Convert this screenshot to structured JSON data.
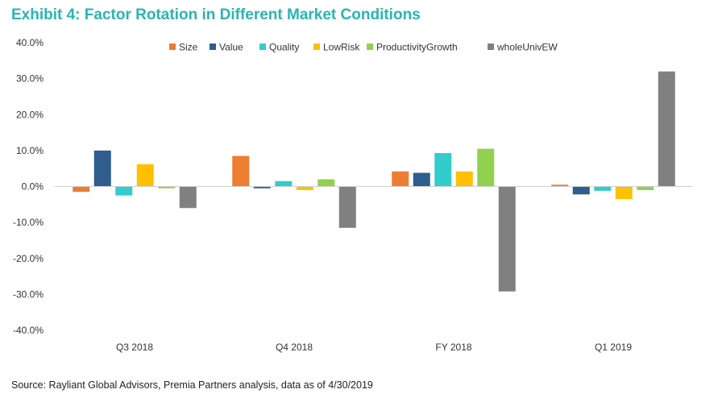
{
  "title": "Exhibit 4: Factor Rotation in Different Market Conditions",
  "source": "Source: Rayliant Global Advisors, Premia Partners analysis, data as of 4/30/2019",
  "chart_data": {
    "type": "bar",
    "categories": [
      "Q3 2018",
      "Q4 2018",
      "FY 2018",
      "Q1 2019"
    ],
    "series": [
      {
        "name": "Size",
        "color": "#ed7d31",
        "values": [
          -1.5,
          8.5,
          4.2,
          0.5
        ]
      },
      {
        "name": "Value",
        "color": "#2e5d8e",
        "values": [
          10.0,
          -0.5,
          3.8,
          -2.2
        ]
      },
      {
        "name": "Quality",
        "color": "#33cccc",
        "values": [
          -2.5,
          1.5,
          9.3,
          -1.2
        ]
      },
      {
        "name": "LowRisk",
        "color": "#ffc000",
        "values": [
          6.2,
          -1.0,
          4.2,
          -3.5
        ]
      },
      {
        "name": "ProductivityGrowth",
        "color": "#92d050",
        "values": [
          -0.5,
          2.0,
          10.5,
          -1.0
        ]
      },
      {
        "name": "wholeUnivEW",
        "color": "#808080",
        "values": [
          -6.0,
          -11.5,
          -29.2,
          32.0
        ]
      }
    ],
    "ylim": [
      -40,
      40
    ],
    "yticks": [
      "40.0%",
      "30.0%",
      "20.0%",
      "10.0%",
      "0.0%",
      "-10.0%",
      "-20.0%",
      "-30.0%",
      "-40.0%"
    ],
    "ytick_values": [
      40,
      30,
      20,
      10,
      0,
      -10,
      -20,
      -30,
      -40
    ],
    "legend": "top",
    "grid": false
  }
}
